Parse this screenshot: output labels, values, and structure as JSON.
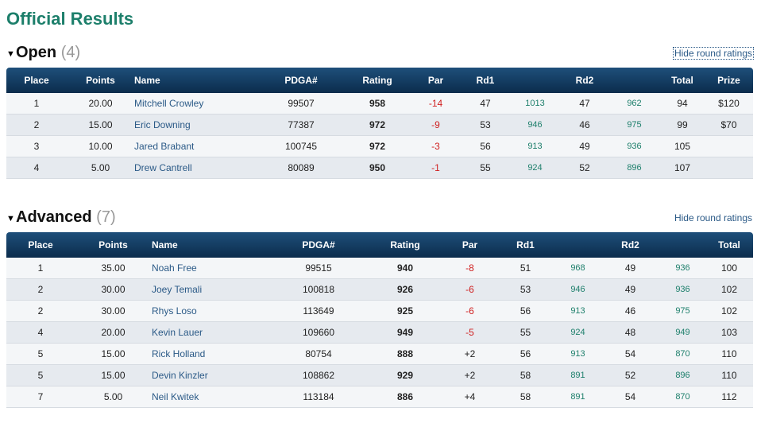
{
  "page": {
    "title": "Official Results"
  },
  "divisions": {
    "open": {
      "name": "Open",
      "count": "(4)",
      "hide_label": "Hide round ratings",
      "headers": {
        "place": "Place",
        "points": "Points",
        "name": "Name",
        "pdga": "PDGA#",
        "rating": "Rating",
        "par": "Par",
        "rd1": "Rd1",
        "rd2": "Rd2",
        "total": "Total",
        "prize": "Prize"
      },
      "rows": [
        {
          "place": "1",
          "points": "20.00",
          "name": "Mitchell Crowley",
          "pdga": "99507",
          "rating": "958",
          "par": "-14",
          "rd1": "47",
          "rd1_rating": "1013",
          "rd2": "47",
          "rd2_rating": "962",
          "total": "94",
          "prize": "$120"
        },
        {
          "place": "2",
          "points": "15.00",
          "name": "Eric Downing",
          "pdga": "77387",
          "rating": "972",
          "par": "-9",
          "rd1": "53",
          "rd1_rating": "946",
          "rd2": "46",
          "rd2_rating": "975",
          "total": "99",
          "prize": "$70"
        },
        {
          "place": "3",
          "points": "10.00",
          "name": "Jared Brabant",
          "pdga": "100745",
          "rating": "972",
          "par": "-3",
          "rd1": "56",
          "rd1_rating": "913",
          "rd2": "49",
          "rd2_rating": "936",
          "total": "105",
          "prize": ""
        },
        {
          "place": "4",
          "points": "5.00",
          "name": "Drew Cantrell",
          "pdga": "80089",
          "rating": "950",
          "par": "-1",
          "rd1": "55",
          "rd1_rating": "924",
          "rd2": "52",
          "rd2_rating": "896",
          "total": "107",
          "prize": ""
        }
      ]
    },
    "advanced": {
      "name": "Advanced",
      "count": "(7)",
      "hide_label": "Hide round ratings",
      "headers": {
        "place": "Place",
        "points": "Points",
        "name": "Name",
        "pdga": "PDGA#",
        "rating": "Rating",
        "par": "Par",
        "rd1": "Rd1",
        "rd2": "Rd2",
        "total": "Total"
      },
      "rows": [
        {
          "place": "1",
          "points": "35.00",
          "name": "Noah Free",
          "pdga": "99515",
          "rating": "940",
          "par": "-8",
          "rd1": "51",
          "rd1_rating": "968",
          "rd2": "49",
          "rd2_rating": "936",
          "total": "100"
        },
        {
          "place": "2",
          "points": "30.00",
          "name": "Joey Temali",
          "pdga": "100818",
          "rating": "926",
          "par": "-6",
          "rd1": "53",
          "rd1_rating": "946",
          "rd2": "49",
          "rd2_rating": "936",
          "total": "102"
        },
        {
          "place": "2",
          "points": "30.00",
          "name": "Rhys Loso",
          "pdga": "113649",
          "rating": "925",
          "par": "-6",
          "rd1": "56",
          "rd1_rating": "913",
          "rd2": "46",
          "rd2_rating": "975",
          "total": "102"
        },
        {
          "place": "4",
          "points": "20.00",
          "name": "Kevin Lauer",
          "pdga": "109660",
          "rating": "949",
          "par": "-5",
          "rd1": "55",
          "rd1_rating": "924",
          "rd2": "48",
          "rd2_rating": "949",
          "total": "103"
        },
        {
          "place": "5",
          "points": "15.00",
          "name": "Rick Holland",
          "pdga": "80754",
          "rating": "888",
          "par": "+2",
          "rd1": "56",
          "rd1_rating": "913",
          "rd2": "54",
          "rd2_rating": "870",
          "total": "110"
        },
        {
          "place": "5",
          "points": "15.00",
          "name": "Devin Kinzler",
          "pdga": "108862",
          "rating": "929",
          "par": "+2",
          "rd1": "58",
          "rd1_rating": "891",
          "rd2": "52",
          "rd2_rating": "896",
          "total": "110"
        },
        {
          "place": "7",
          "points": "5.00",
          "name": "Neil Kwitek",
          "pdga": "113184",
          "rating": "886",
          "par": "+4",
          "rd1": "58",
          "rd1_rating": "891",
          "rd2": "54",
          "rd2_rating": "870",
          "total": "112"
        }
      ]
    }
  }
}
